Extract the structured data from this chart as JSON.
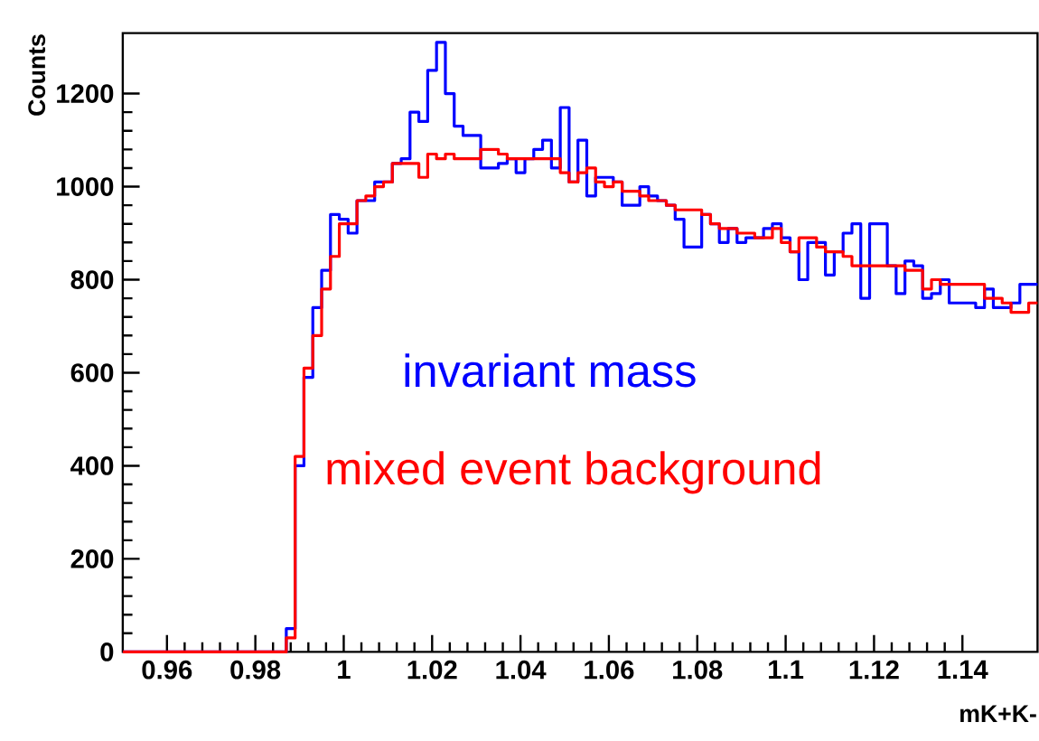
{
  "chart_data": {
    "type": "histogram",
    "xlabel": "mK+K-",
    "ylabel": "Counts",
    "bins": [
      0.95,
      0.987,
      0.989,
      0.991,
      0.993,
      0.995,
      0.997,
      0.999,
      1.001,
      1.003,
      1.005,
      1.007,
      1.009,
      1.011,
      1.013,
      1.015,
      1.017,
      1.019,
      1.021,
      1.023,
      1.025,
      1.027,
      1.029,
      1.031,
      1.033,
      1.035,
      1.037,
      1.039,
      1.041,
      1.043,
      1.045,
      1.047,
      1.049,
      1.051,
      1.053,
      1.055,
      1.057,
      1.059,
      1.061,
      1.063,
      1.065,
      1.067,
      1.069,
      1.071,
      1.073,
      1.075,
      1.077,
      1.079,
      1.081,
      1.083,
      1.085,
      1.087,
      1.089,
      1.091,
      1.093,
      1.095,
      1.097,
      1.099,
      1.101,
      1.103,
      1.105,
      1.107,
      1.109,
      1.111,
      1.113,
      1.115,
      1.117,
      1.119,
      1.121,
      1.123,
      1.125,
      1.127,
      1.129,
      1.131,
      1.133,
      1.135,
      1.137,
      1.139,
      1.141,
      1.143,
      1.145,
      1.147,
      1.149,
      1.151,
      1.153,
      1.155,
      1.157
    ],
    "series": [
      {
        "name": "invariant mass",
        "color": "#0000ff",
        "values": [
          0,
          50,
          400,
          590,
          740,
          820,
          940,
          930,
          900,
          970,
          970,
          1010,
          1010,
          1050,
          1060,
          1160,
          1140,
          1250,
          1310,
          1200,
          1130,
          1110,
          1110,
          1040,
          1040,
          1050,
          1060,
          1030,
          1060,
          1080,
          1100,
          1040,
          1170,
          1010,
          1100,
          980,
          1020,
          1020,
          1010,
          960,
          960,
          1000,
          980,
          970,
          960,
          930,
          870,
          870,
          940,
          920,
          880,
          910,
          880,
          890,
          890,
          910,
          920,
          890,
          860,
          800,
          880,
          880,
          810,
          860,
          900,
          920,
          760,
          920,
          920,
          830,
          770,
          840,
          830,
          760,
          770,
          800,
          750,
          750,
          750,
          740,
          780,
          740,
          740,
          750,
          790,
          790
        ]
      },
      {
        "name": "mixed event background",
        "color": "#ff0000",
        "values": [
          0,
          30,
          420,
          610,
          680,
          780,
          850,
          920,
          920,
          970,
          980,
          1000,
          1010,
          1050,
          1050,
          1050,
          1020,
          1070,
          1060,
          1070,
          1060,
          1060,
          1060,
          1080,
          1080,
          1070,
          1060,
          1060,
          1060,
          1060,
          1060,
          1060,
          1030,
          1010,
          1030,
          1040,
          1010,
          1000,
          1010,
          990,
          990,
          980,
          970,
          970,
          960,
          950,
          950,
          950,
          940,
          920,
          910,
          910,
          900,
          900,
          890,
          890,
          910,
          880,
          860,
          890,
          890,
          870,
          860,
          860,
          850,
          830,
          830,
          830,
          830,
          830,
          830,
          820,
          820,
          780,
          800,
          790,
          790,
          790,
          790,
          790,
          760,
          760,
          750,
          730,
          730,
          750
        ]
      }
    ],
    "xlim": [
      0.95,
      1.157
    ],
    "ylim": [
      0,
      1330
    ],
    "xticks": [
      0.96,
      0.98,
      1,
      1.02,
      1.04,
      1.06,
      1.08,
      1.1,
      1.12,
      1.14
    ],
    "yticks": [
      0,
      200,
      400,
      600,
      800,
      1000,
      1200
    ]
  }
}
